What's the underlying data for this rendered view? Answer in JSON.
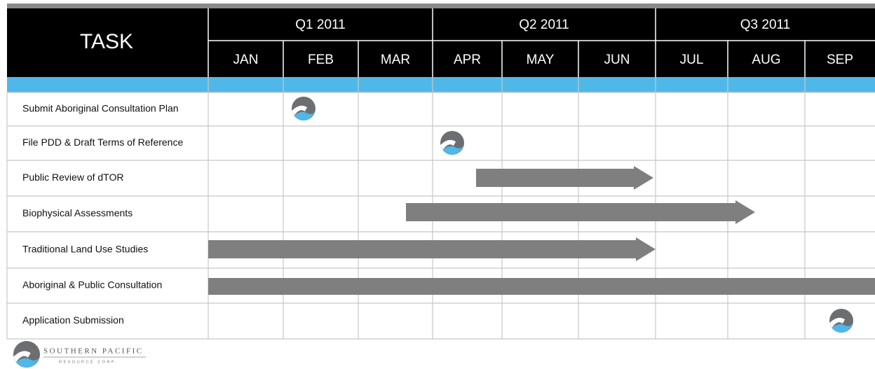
{
  "header": {
    "task_label": "TASK",
    "quarters": [
      "Q1 2011",
      "Q2 2011",
      "Q3 2011"
    ],
    "months": [
      "JAN",
      "FEB",
      "MAR",
      "APR",
      "MAY",
      "JUN",
      "JUL",
      "AUG",
      "SEP"
    ]
  },
  "tasks": [
    "Submit Aboriginal Consultation Plan",
    "File PDD & Draft Terms of Reference",
    "Public Review of dTOR",
    "Biophysical Assessments",
    "Traditional Land Use Studies",
    "Aboriginal & Public Consultation",
    "Application Submission"
  ],
  "logo": {
    "name": "SOUTHERN PACIFIC",
    "subtitle": "RESOURCE CORP."
  }
}
